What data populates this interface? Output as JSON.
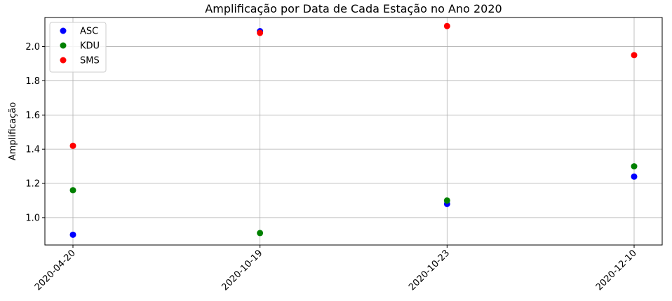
{
  "chart_data": {
    "type": "scatter",
    "title": "Amplificação por Data de Cada Estação no Ano 2020",
    "xlabel": "",
    "ylabel": "Amplificação",
    "categories": [
      "2020-04-20",
      "2020-10-19",
      "2020-10-23",
      "2020-12-10"
    ],
    "ylim": [
      0.84,
      2.17
    ],
    "yticks": [
      "1.0",
      "1.2",
      "1.4",
      "1.6",
      "1.8",
      "2.0"
    ],
    "grid": true,
    "legend_position": "top-left",
    "series": [
      {
        "name": "ASC",
        "color": "#0000ff",
        "values": [
          0.9,
          2.09,
          1.08,
          1.24
        ]
      },
      {
        "name": "KDU",
        "color": "#008000",
        "values": [
          1.16,
          0.91,
          1.1,
          1.3
        ]
      },
      {
        "name": "SMS",
        "color": "#ff0000",
        "values": [
          1.42,
          2.08,
          2.12,
          1.95
        ]
      }
    ]
  }
}
